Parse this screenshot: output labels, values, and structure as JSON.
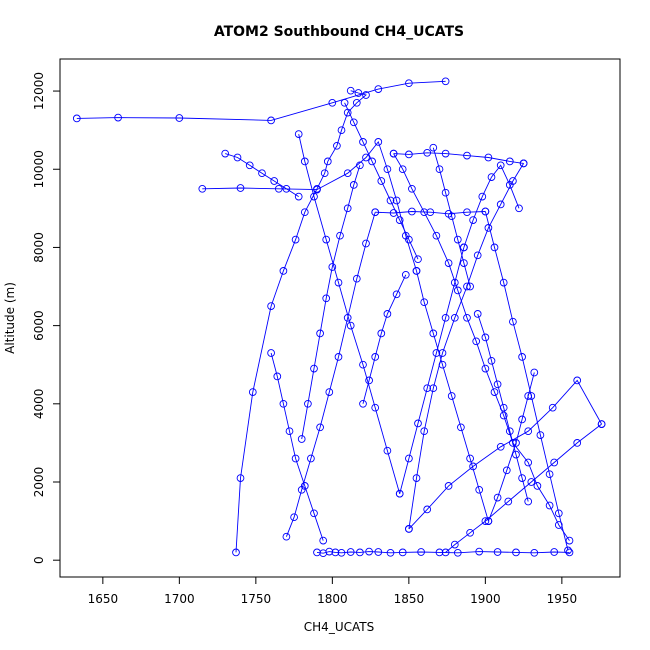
{
  "chart_data": {
    "type": "scatter",
    "title": "ATOM2 Southbound CH4_UCATS",
    "xlabel": "CH4_UCATS",
    "ylabel": "Altitude (m)",
    "xlim": [
      1622,
      1988
    ],
    "ylim": [
      -430,
      12820
    ],
    "x_ticks": [
      1650,
      1700,
      1750,
      1800,
      1850,
      1900,
      1950
    ],
    "y_ticks": [
      0,
      2000,
      4000,
      6000,
      8000,
      10000,
      12000
    ],
    "grid": false,
    "legend": "none",
    "color": "#0000ff",
    "point_style": "open-circle",
    "connected": true,
    "series": [
      {
        "x": [
          1812,
          1817,
          1822,
          1816,
          1810,
          1806,
          1803,
          1797,
          1795,
          1790,
          1782,
          1776,
          1768,
          1760,
          1748,
          1740,
          1737
        ],
        "y": [
          12010,
          11950,
          11900,
          11700,
          11450,
          11000,
          10600,
          10200,
          9900,
          9500,
          8900,
          8200,
          7400,
          6500,
          4300,
          2100,
          200
        ]
      },
      {
        "x": [
          1633,
          1660,
          1700,
          1760,
          1800,
          1830,
          1850,
          1874
        ],
        "y": [
          11300,
          11320,
          11310,
          11250,
          11700,
          12050,
          12200,
          12250
        ]
      },
      {
        "x": [
          1790,
          1794,
          1798,
          1802,
          1806,
          1812,
          1818,
          1824,
          1830,
          1838,
          1846,
          1858,
          1870,
          1882,
          1896,
          1908,
          1920,
          1932,
          1945,
          1955
        ],
        "y": [
          200,
          180,
          220,
          200,
          190,
          210,
          200,
          220,
          210,
          190,
          200,
          210,
          200,
          190,
          220,
          210,
          200,
          190,
          210,
          200
        ]
      },
      {
        "x": [
          1955,
          1948,
          1942,
          1934,
          1928,
          1918,
          1912,
          1906,
          1900,
          1894,
          1888,
          1882,
          1876,
          1868,
          1860,
          1852,
          1846,
          1840
        ],
        "y": [
          500,
          900,
          1400,
          1900,
          2500,
          3000,
          3700,
          4300,
          4900,
          5600,
          6200,
          6900,
          7600,
          8300,
          8900,
          9500,
          10000,
          10400
        ]
      },
      {
        "x": [
          1840,
          1850,
          1862,
          1874,
          1888,
          1902,
          1916,
          1925
        ],
        "y": [
          10400,
          10380,
          10420,
          10400,
          10350,
          10300,
          10200,
          10150
        ]
      },
      {
        "x": [
          1925,
          1918,
          1910,
          1902,
          1895,
          1888,
          1880,
          1872,
          1866,
          1860,
          1855,
          1850
        ],
        "y": [
          10150,
          9700,
          9100,
          8500,
          7800,
          7000,
          6200,
          5300,
          4400,
          3300,
          2100,
          800
        ]
      },
      {
        "x": [
          1850,
          1862,
          1876,
          1892,
          1910,
          1928,
          1944,
          1960,
          1976
        ],
        "y": [
          800,
          1300,
          1900,
          2400,
          2900,
          3300,
          3900,
          4600,
          3480
        ]
      },
      {
        "x": [
          1976,
          1960,
          1945,
          1930,
          1915,
          1900,
          1890,
          1880,
          1874
        ],
        "y": [
          3480,
          3000,
          2500,
          2000,
          1500,
          1000,
          700,
          400,
          200
        ]
      },
      {
        "x": [
          1770,
          1775,
          1780,
          1786,
          1792,
          1798,
          1804,
          1810,
          1816,
          1822,
          1828
        ],
        "y": [
          600,
          1100,
          1800,
          2600,
          3400,
          4300,
          5200,
          6200,
          7200,
          8100,
          8900
        ]
      },
      {
        "x": [
          1828,
          1840,
          1852,
          1864,
          1876,
          1888,
          1900
        ],
        "y": [
          8900,
          8880,
          8920,
          8900,
          8860,
          8900,
          8920
        ]
      },
      {
        "x": [
          1900,
          1906,
          1912,
          1918,
          1924,
          1930,
          1936,
          1942,
          1948,
          1954
        ],
        "y": [
          8920,
          8000,
          7100,
          6100,
          5200,
          4200,
          3200,
          2200,
          1200,
          250
        ]
      },
      {
        "x": [
          1715,
          1740,
          1765,
          1790,
          1810,
          1822,
          1830,
          1836,
          1842,
          1848,
          1855
        ],
        "y": [
          9500,
          9520,
          9500,
          9480,
          9900,
          10300,
          10700,
          10000,
          9200,
          8300,
          7400
        ]
      },
      {
        "x": [
          1855,
          1860,
          1866,
          1872,
          1878,
          1884,
          1890,
          1896,
          1902
        ],
        "y": [
          7400,
          6600,
          5800,
          5000,
          4200,
          3400,
          2600,
          1800,
          1000
        ]
      },
      {
        "x": [
          1902,
          1908,
          1914,
          1920,
          1924,
          1928,
          1932
        ],
        "y": [
          1000,
          1600,
          2300,
          3000,
          3600,
          4200,
          4800
        ]
      },
      {
        "x": [
          1778,
          1782,
          1788,
          1796,
          1804,
          1812,
          1820,
          1828,
          1836,
          1844
        ],
        "y": [
          10900,
          10200,
          9300,
          8200,
          7100,
          6000,
          5000,
          3900,
          2800,
          1700
        ]
      },
      {
        "x": [
          1844,
          1850,
          1856,
          1862,
          1868,
          1874,
          1880,
          1886
        ],
        "y": [
          1700,
          2600,
          3500,
          4400,
          5300,
          6200,
          7100,
          8000
        ]
      },
      {
        "x": [
          1886,
          1892,
          1898,
          1904,
          1910,
          1916,
          1922
        ],
        "y": [
          8000,
          8700,
          9300,
          9800,
          10100,
          9600,
          9000
        ]
      },
      {
        "x": [
          1780,
          1784,
          1788,
          1792,
          1796,
          1800,
          1805,
          1810,
          1814,
          1818
        ],
        "y": [
          3100,
          4000,
          4900,
          5800,
          6700,
          7500,
          8300,
          9000,
          9600,
          10100
        ]
      },
      {
        "x": [
          1730,
          1738,
          1746,
          1754,
          1762,
          1770,
          1778
        ],
        "y": [
          10400,
          10300,
          10100,
          9900,
          9700,
          9500,
          9300
        ]
      },
      {
        "x": [
          1760,
          1764,
          1768,
          1772,
          1776,
          1782,
          1788,
          1794
        ],
        "y": [
          5300,
          4700,
          4000,
          3300,
          2600,
          1900,
          1200,
          500
        ]
      },
      {
        "x": [
          1808,
          1814,
          1820,
          1826,
          1832,
          1838,
          1844,
          1850,
          1856
        ],
        "y": [
          11700,
          11200,
          10700,
          10200,
          9700,
          9200,
          8700,
          8200,
          7700
        ]
      },
      {
        "x": [
          1866,
          1870,
          1874,
          1878,
          1882,
          1886,
          1890
        ],
        "y": [
          10550,
          10000,
          9400,
          8800,
          8200,
          7600,
          7000
        ]
      },
      {
        "x": [
          1895,
          1900,
          1904,
          1908,
          1912,
          1916,
          1920,
          1924,
          1928
        ],
        "y": [
          6300,
          5700,
          5100,
          4500,
          3900,
          3300,
          2700,
          2100,
          1500
        ]
      },
      {
        "x": [
          1820,
          1824,
          1828,
          1832,
          1836,
          1842,
          1848
        ],
        "y": [
          4000,
          4600,
          5200,
          5800,
          6300,
          6800,
          7300
        ]
      }
    ]
  }
}
